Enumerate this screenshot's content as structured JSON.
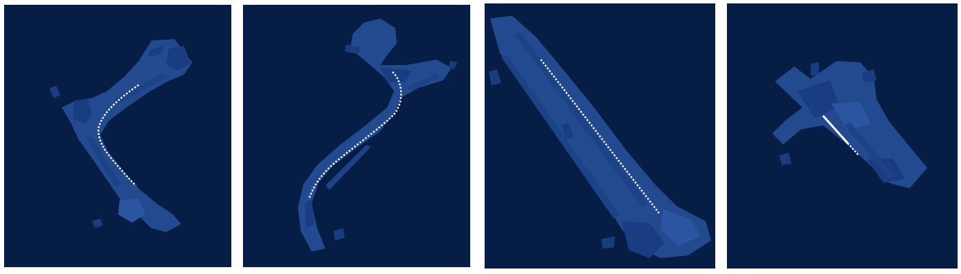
{
  "figure": {
    "background": "#ffffff",
    "colors": {
      "background": "#061e45",
      "drivable_area": "#23498f",
      "drivable_area_dark": "#1a3d82",
      "drivable_area_light": "#2b55a0",
      "trajectory": "#ffffff"
    },
    "panels": [
      {
        "kind": "bird-eye-view map with trajectory",
        "trajectory_shape": "left curve"
      },
      {
        "kind": "bird-eye-view map with trajectory",
        "trajectory_shape": "s curve"
      },
      {
        "kind": "bird-eye-view map with trajectory",
        "trajectory_shape": "straight"
      },
      {
        "kind": "bird-eye-view map with trajectory",
        "trajectory_shape": "short straight"
      }
    ]
  }
}
